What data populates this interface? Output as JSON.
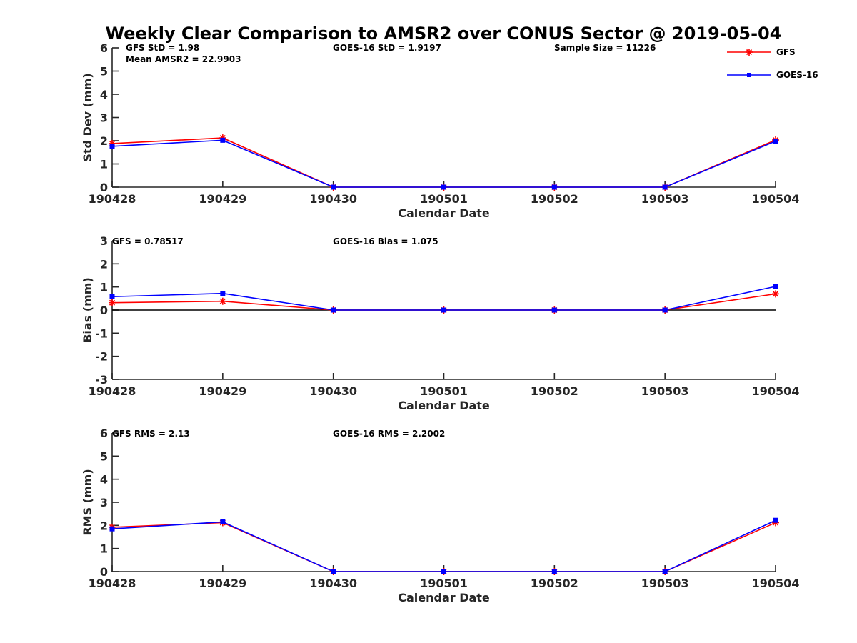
{
  "title": "Weekly Clear Comparison to AMSR2 over CONUS Sector @ 2019-05-04",
  "colors": {
    "gfs": "#ff0000",
    "goes": "#0000ff",
    "axis": "#262626"
  },
  "legend": {
    "position": "top-right",
    "entries": [
      "GFS",
      "GOES-16"
    ]
  },
  "chart_data": [
    {
      "type": "line",
      "categories": [
        "190428",
        "190429",
        "190430",
        "190501",
        "190502",
        "190503",
        "190504"
      ],
      "xlabel": "Calendar Date",
      "ylabel": "Std Dev (mm)",
      "ylim": [
        0,
        6
      ],
      "yticks": [
        "0",
        "1",
        "2",
        "3",
        "4",
        "5",
        "6"
      ],
      "annotations": [
        "GFS StD = 1.98",
        "Mean AMSR2 = 22.9903",
        "GOES-16 StD = 1.9197",
        "Sample Size = 11226"
      ],
      "series": [
        {
          "name": "GFS",
          "values": [
            1.88,
            2.12,
            0,
            0,
            0,
            0,
            2.03
          ]
        },
        {
          "name": "GOES-16",
          "values": [
            1.76,
            2.02,
            0,
            0,
            0,
            0,
            1.98
          ]
        }
      ]
    },
    {
      "type": "line",
      "categories": [
        "190428",
        "190429",
        "190430",
        "190501",
        "190502",
        "190503",
        "190504"
      ],
      "xlabel": "Calendar Date",
      "ylabel": "Bias (mm)",
      "ylim": [
        -3,
        3
      ],
      "yticks": [
        "-3",
        "-2",
        "-1",
        "0",
        "1",
        "2",
        "3"
      ],
      "zero_line": true,
      "annotations": [
        "GFS = 0.78517",
        "GOES-16 Bias  = 1.075"
      ],
      "series": [
        {
          "name": "GFS",
          "values": [
            0.32,
            0.38,
            0,
            0,
            0,
            0,
            0.7
          ]
        },
        {
          "name": "GOES-16",
          "values": [
            0.58,
            0.72,
            0,
            0,
            0,
            0,
            1.02
          ]
        }
      ]
    },
    {
      "type": "line",
      "categories": [
        "190428",
        "190429",
        "190430",
        "190501",
        "190502",
        "190503",
        "190504"
      ],
      "xlabel": "Calendar Date",
      "ylabel": "RMS (mm)",
      "ylim": [
        0,
        6
      ],
      "yticks": [
        "0",
        "1",
        "2",
        "3",
        "4",
        "5",
        "6"
      ],
      "annotations": [
        "GFS RMS = 2.13",
        "GOES-16 RMS = 2.2002"
      ],
      "series": [
        {
          "name": "GFS",
          "values": [
            1.92,
            2.12,
            0,
            0,
            0,
            0,
            2.12
          ]
        },
        {
          "name": "GOES-16",
          "values": [
            1.85,
            2.15,
            0,
            0,
            0,
            0,
            2.22
          ]
        }
      ]
    }
  ]
}
